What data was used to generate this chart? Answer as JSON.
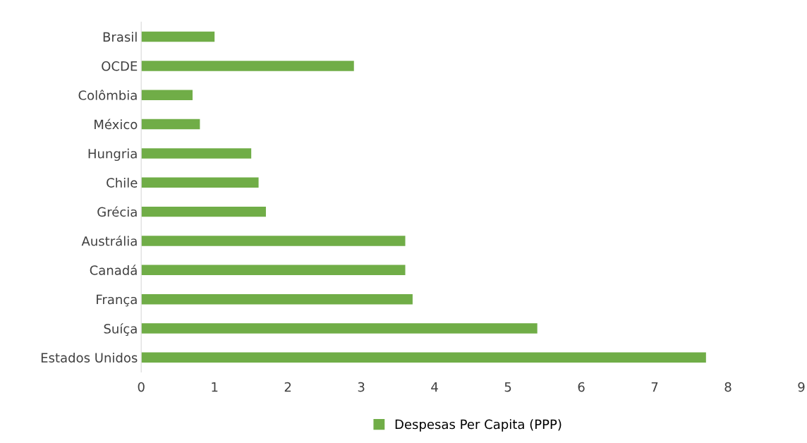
{
  "chart_data": {
    "type": "bar",
    "orientation": "horizontal",
    "categories": [
      "Brasil",
      "OCDE",
      "Colômbia",
      "México",
      "Hungria",
      "Chile",
      "Grécia",
      "Austrália",
      "Canadá",
      "França",
      "Suíça",
      "Estados Unidos"
    ],
    "series": [
      {
        "name": "Despesas Per Capita (PPP)",
        "color": "#70ad47",
        "values": [
          1.0,
          2.9,
          0.7,
          0.8,
          1.5,
          1.6,
          1.7,
          3.6,
          3.6,
          3.7,
          5.4,
          7.7
        ]
      }
    ],
    "xlim": [
      0,
      9
    ],
    "xticks": [
      0,
      1,
      2,
      3,
      4,
      5,
      6,
      7,
      8,
      9
    ],
    "grid": false,
    "legend": "bottom"
  }
}
